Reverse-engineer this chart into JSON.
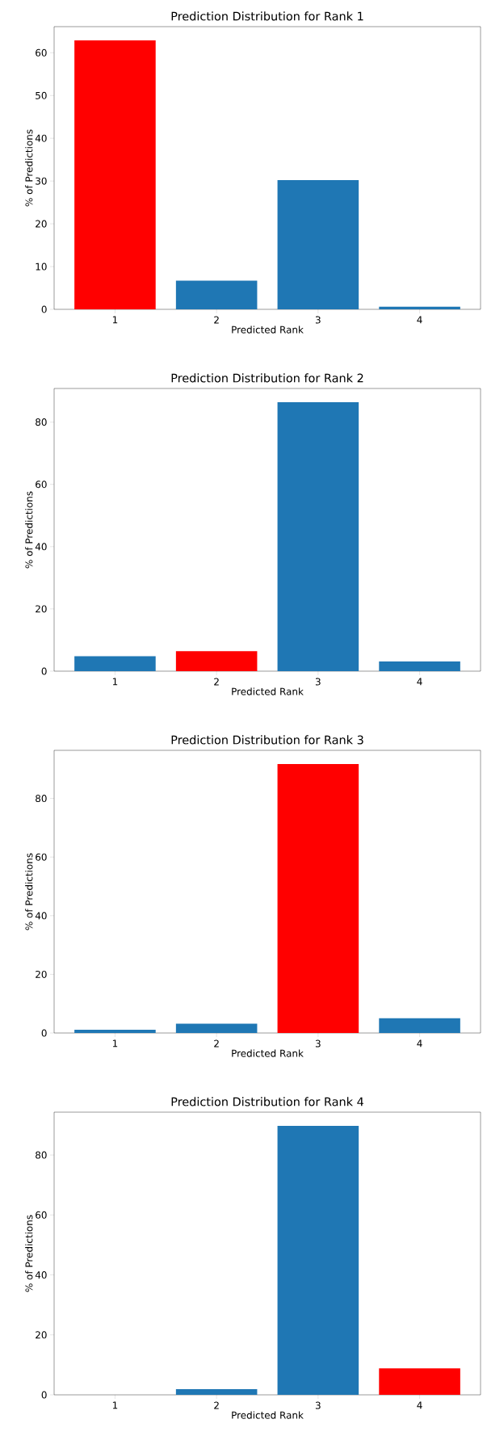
{
  "chart_data": [
    {
      "type": "bar",
      "title": "Prediction Distribution for Rank 1",
      "xlabel": "Predicted Rank",
      "ylabel": "% of Predictions",
      "categories": [
        "1",
        "2",
        "3",
        "4"
      ],
      "values": [
        62.9,
        6.7,
        30.2,
        0.6
      ],
      "colors": [
        "#ff0000",
        "#1f77b4",
        "#1f77b4",
        "#1f77b4"
      ],
      "ylim": [
        0,
        66.1
      ],
      "yticks": [
        0,
        10,
        20,
        30,
        40,
        50,
        60
      ]
    },
    {
      "type": "bar",
      "title": "Prediction Distribution for Rank 2",
      "xlabel": "Predicted Rank",
      "ylabel": "% of Predictions",
      "categories": [
        "1",
        "2",
        "3",
        "4"
      ],
      "values": [
        4.8,
        6.4,
        86.4,
        3.1
      ],
      "colors": [
        "#1f77b4",
        "#ff0000",
        "#1f77b4",
        "#1f77b4"
      ],
      "ylim": [
        0,
        90.8
      ],
      "yticks": [
        0,
        20,
        40,
        60,
        80
      ]
    },
    {
      "type": "bar",
      "title": "Prediction Distribution for Rank 3",
      "xlabel": "Predicted Rank",
      "ylabel": "% of Predictions",
      "categories": [
        "1",
        "2",
        "3",
        "4"
      ],
      "values": [
        1.1,
        3.2,
        91.7,
        5.0
      ],
      "colors": [
        "#1f77b4",
        "#1f77b4",
        "#ff0000",
        "#1f77b4"
      ],
      "ylim": [
        0,
        96.4
      ],
      "yticks": [
        0,
        20,
        40,
        60,
        80
      ]
    },
    {
      "type": "bar",
      "title": "Prediction Distribution for Rank 4",
      "xlabel": "Predicted Rank",
      "ylabel": "% of Predictions",
      "categories": [
        "1",
        "2",
        "3",
        "4"
      ],
      "values": [
        0,
        1.9,
        89.7,
        8.8
      ],
      "colors": [
        "#1f77b4",
        "#1f77b4",
        "#1f77b4",
        "#ff0000"
      ],
      "ylim": [
        0,
        94.3
      ],
      "yticks": [
        0,
        20,
        40,
        60,
        80
      ]
    }
  ]
}
